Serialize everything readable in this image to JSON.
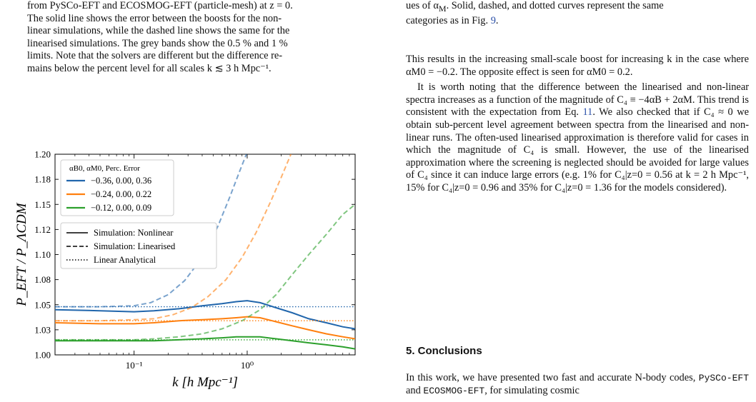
{
  "left_caption": [
    "from PySCo-EFT and ECOSMOG-EFT (particle-mesh) at z = 0.",
    "The solid line shows the error between the boosts for the non-",
    "linear simulations, while the dashed line shows the same for the",
    "linearised simulations. The grey bands show the 0.5 % and 1 %",
    "limits. Note that the solvers are different but the difference re-",
    "mains below the percent level for all scales k ≲ 3 h Mpc⁻¹."
  ],
  "right_caption": [
    "ues of α",
    "M",
    ". Solid, dashed, and dotted curves represent the same",
    "categories as in Fig. ",
    "9",
    "."
  ],
  "right_para1": "This results in the increasing small-scale boost for increasing k in the case where αM0 = −0.2. The opposite effect is seen for αM0 = 0.2.",
  "right_para2_a": "It is worth noting that the difference between the linearised and non-linear spectra increases as a function of the magnitude of C₄ ≡ −4αB + 2αM. This trend is consistent with the expectation from Eq. ",
  "right_para2_ref": "11",
  "right_para2_b": ". We also checked that if C₄ ≈ 0 we obtain sub-percent level agreement between spectra from the linearised and non-linear runs. The often-used linearised approximation is therefore valid for cases in which the magnitude of C₄ is small. However, the use of the linearised approximation where the screening is neglected should be avoided for large values of C₄ since it can induce large errors (e.g. 1% for C₄|z=0 = 0.56 at k = 2 h Mpc⁻¹, 15% for C₄|z=0 = 0.96 and 35% for C₄|z=0 = 1.36 for the models considered).",
  "section_title": "5. Conclusions",
  "conclusion_a": "In this work, we have presented two fast and accurate N-body codes, ",
  "conclusion_code1": "PySCo-EFT",
  "conclusion_mid": " and ",
  "conclusion_code2": "ECOSMOG-EFT",
  "conclusion_b": ", for simulating cosmic",
  "chart_data": {
    "type": "line",
    "xlabel": "k [h Mpc⁻¹]",
    "ylabel": "P_EFT / P_ΛCDM",
    "x_scale": "log",
    "xlim": [
      0.02,
      9.0
    ],
    "ylim": [
      1.0,
      1.2
    ],
    "x_ticks": [
      {
        "v": 0.1,
        "label": "10⁻¹"
      },
      {
        "v": 1.0,
        "label": "10⁰"
      }
    ],
    "y_ticks": [
      {
        "v": 1.0,
        "label": "1.00"
      },
      {
        "v": 1.025,
        "label": "1.03"
      },
      {
        "v": 1.05,
        "label": "1.05"
      },
      {
        "v": 1.075,
        "label": "1.08"
      },
      {
        "v": 1.1,
        "label": "1.10"
      },
      {
        "v": 1.125,
        "label": "1.12"
      },
      {
        "v": 1.15,
        "label": "1.15"
      },
      {
        "v": 1.175,
        "label": "1.18"
      },
      {
        "v": 1.2,
        "label": "1.20"
      }
    ],
    "legend_title": "αB0, αM0, Perc. Error",
    "legend_entries": [
      "−0.36, 0.00, 0.36",
      "−0.24, 0.00, 0.22",
      "−0.12, 0.00, 0.09"
    ],
    "style_legend": [
      "Simulation: Nonlinear",
      "Simulation: Linearised",
      "Linear Analytical"
    ],
    "legend_placement": "top-left",
    "colors": [
      "#2166ac",
      "#ff7f0e",
      "#2ca02c"
    ],
    "series": [
      {
        "linear_analytical": 1.048,
        "nonlinear": {
          "x": [
            0.02,
            0.05,
            0.1,
            0.15,
            0.25,
            0.4,
            0.6,
            0.8,
            1.0,
            1.3,
            1.8,
            2.5,
            3.5,
            5,
            7,
            9
          ],
          "y": [
            1.045,
            1.044,
            1.043,
            1.044,
            1.046,
            1.049,
            1.051,
            1.053,
            1.054,
            1.052,
            1.047,
            1.042,
            1.036,
            1.032,
            1.028,
            1.026
          ]
        },
        "linearised": {
          "x": [
            0.02,
            0.05,
            0.1,
            0.14,
            0.2,
            0.28,
            0.4,
            0.55,
            0.7,
            0.85,
            1.0
          ],
          "y": [
            1.048,
            1.048,
            1.049,
            1.052,
            1.06,
            1.074,
            1.097,
            1.128,
            1.157,
            1.182,
            1.202
          ]
        }
      },
      {
        "linear_analytical": 1.034,
        "nonlinear": {
          "x": [
            0.02,
            0.05,
            0.1,
            0.15,
            0.25,
            0.4,
            0.6,
            0.8,
            1.0,
            1.3,
            1.8,
            2.5,
            3.5,
            5,
            7,
            9
          ],
          "y": [
            1.032,
            1.031,
            1.031,
            1.032,
            1.034,
            1.035,
            1.036,
            1.037,
            1.038,
            1.037,
            1.033,
            1.029,
            1.025,
            1.021,
            1.018,
            1.016
          ]
        },
        "linearised": {
          "x": [
            0.02,
            0.05,
            0.1,
            0.15,
            0.22,
            0.32,
            0.45,
            0.65,
            0.9,
            1.2,
            1.6,
            2.0,
            2.5
          ],
          "y": [
            1.034,
            1.034,
            1.035,
            1.036,
            1.04,
            1.047,
            1.058,
            1.075,
            1.097,
            1.122,
            1.152,
            1.177,
            1.203
          ]
        }
      },
      {
        "linear_analytical": 1.015,
        "nonlinear": {
          "x": [
            0.02,
            0.05,
            0.1,
            0.15,
            0.25,
            0.4,
            0.6,
            0.8,
            1.0,
            1.3,
            1.8,
            2.5,
            3.5,
            5,
            7,
            9
          ],
          "y": [
            1.014,
            1.014,
            1.014,
            1.014,
            1.015,
            1.016,
            1.017,
            1.018,
            1.018,
            1.018,
            1.016,
            1.014,
            1.012,
            1.01,
            1.008,
            1.006
          ]
        },
        "linearised": {
          "x": [
            0.02,
            0.05,
            0.1,
            0.15,
            0.25,
            0.4,
            0.6,
            0.9,
            1.3,
            1.8,
            2.5,
            3.5,
            5,
            7,
            9
          ],
          "y": [
            1.015,
            1.015,
            1.015,
            1.016,
            1.018,
            1.021,
            1.026,
            1.034,
            1.045,
            1.06,
            1.08,
            1.1,
            1.12,
            1.14,
            1.15
          ]
        }
      }
    ]
  }
}
